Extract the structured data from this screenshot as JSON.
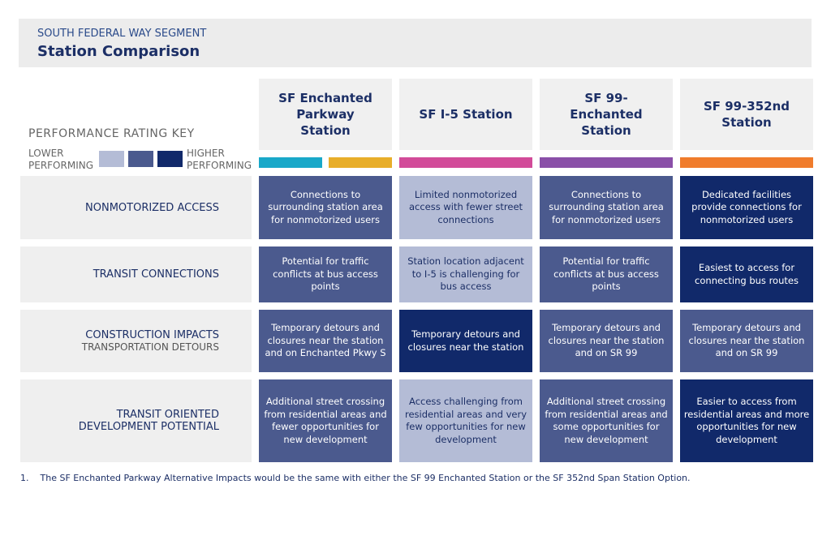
{
  "header": {
    "subtitle": "SOUTH FEDERAL WAY SEGMENT",
    "title": "Station Comparison"
  },
  "key": {
    "title": "PERFORMANCE RATING KEY",
    "lower": "LOWER PERFORMING",
    "higher": "HIGHER PERFORMING",
    "colors": [
      "#b4bcd6",
      "#4b5a8e",
      "#11296a"
    ]
  },
  "columns": [
    {
      "label": "SF Enchanted Parkway Station",
      "colors": [
        "#19a8c9",
        "#e8ae2a"
      ]
    },
    {
      "label": "SF I-5 Station",
      "colors": [
        "#d24b99"
      ]
    },
    {
      "label": "SF 99-Enchanted Station",
      "colors": [
        "#8a4fa8"
      ]
    },
    {
      "label": "SF 99-352nd Station",
      "colors": [
        "#f07c2c"
      ]
    }
  ],
  "rows": [
    {
      "label": "NONMOTORIZED ACCESS",
      "cells": [
        {
          "text": "Connections to surrounding station area for nonmotorized users",
          "color": "#4b5a8e"
        },
        {
          "text": "Limited nonmotorized access with fewer street connections",
          "color": "#b4bcd6"
        },
        {
          "text": "Connections to surrounding station area for nonmotorized users",
          "color": "#4b5a8e"
        },
        {
          "text": "Dedicated facilities provide connections for nonmotorized users",
          "color": "#11296a"
        }
      ]
    },
    {
      "label": "TRANSIT CONNECTIONS",
      "cells": [
        {
          "text": "Potential for traffic conflicts at bus access points",
          "color": "#4b5a8e"
        },
        {
          "text": "Station location adjacent to I-5 is challenging for bus access",
          "color": "#b4bcd6"
        },
        {
          "text": "Potential for traffic conflicts at bus access points",
          "color": "#4b5a8e"
        },
        {
          "text": "Easiest to access for connecting bus routes",
          "color": "#11296a"
        }
      ]
    },
    {
      "label": "CONSTRUCTION IMPACTS",
      "sublabel": "TRANSPORTATION DETOURS",
      "cells": [
        {
          "text": "Temporary detours and closures near the station and on Enchanted Pkwy S",
          "color": "#4b5a8e"
        },
        {
          "text": "Temporary detours and closures near the station",
          "color": "#11296a"
        },
        {
          "text": "Temporary detours and closures near the station and on SR 99",
          "color": "#4b5a8e"
        },
        {
          "text": "Temporary detours and closures near the station and on SR 99",
          "color": "#4b5a8e"
        }
      ]
    },
    {
      "label": "TRANSIT ORIENTED DEVELOPMENT POTENTIAL",
      "cells": [
        {
          "text": "Additional street crossing from residential areas and fewer opportunities for new development",
          "color": "#4b5a8e"
        },
        {
          "text": "Access challenging from residential areas and very few opportunities for new development",
          "color": "#b4bcd6"
        },
        {
          "text": "Additional street crossing from residential areas and some opportunities for new development",
          "color": "#4b5a8e"
        },
        {
          "text": "Easier to access from residential areas and more opportunities for new development",
          "color": "#11296a"
        }
      ]
    }
  ],
  "footnote": {
    "number": "1.",
    "text": "The SF Enchanted Parkway Alternative Impacts would be the same with either the SF 99 Enchanted Station or the SF 352nd Span Station Option."
  }
}
